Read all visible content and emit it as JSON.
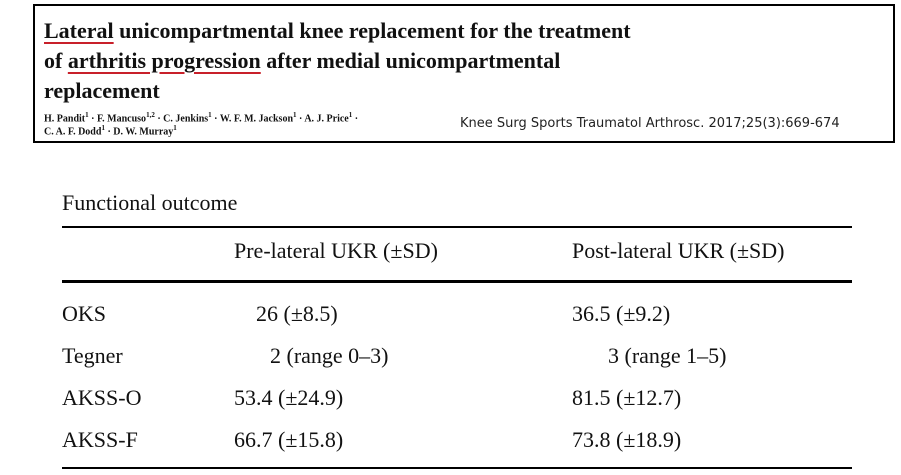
{
  "header": {
    "title_lines": [
      [
        {
          "text": "Lateral",
          "underline": true
        },
        {
          "text": " unicompartmental knee replacement for the treatment",
          "underline": false
        }
      ],
      [
        {
          "text": "of ",
          "underline": false
        },
        {
          "text": "arthritis progression",
          "underline": true
        },
        {
          "text": " after medial unicompartmental",
          "underline": false
        }
      ],
      [
        {
          "text": "replacement",
          "underline": false
        }
      ]
    ],
    "separator": "·",
    "author_lines": [
      [
        {
          "name": "H. Pandit",
          "aff": "1"
        },
        {
          "name": "F. Mancuso",
          "aff": "1,2"
        },
        {
          "name": "C. Jenkins",
          "aff": "1"
        },
        {
          "name": "W. F. M. Jackson",
          "aff": "1"
        },
        {
          "name": "A. J. Price",
          "aff": "1"
        }
      ],
      [
        {
          "name": "C. A. F. Dodd",
          "aff": "1"
        },
        {
          "name": "D. W. Murray",
          "aff": "1"
        }
      ]
    ],
    "citation": "Knee Surg Sports Traumatol Arthrosc. 2017;25(3):669-674"
  },
  "table": {
    "caption": "Functional outcome",
    "columns": [
      "",
      "Pre-lateral UKR (±SD)",
      "Post-lateral UKR (±SD)"
    ],
    "rows": [
      [
        "OKS",
        "26 (±8.5)",
        "36.5 (±9.2)"
      ],
      [
        "Tegner",
        "2 (range 0–3)",
        "3 (range 1–5)"
      ],
      [
        "AKSS-O",
        "53.4 (±24.9)",
        "81.5 (±12.7)"
      ],
      [
        "AKSS-F",
        "66.7 (±15.8)",
        "73.8 (±18.9)"
      ]
    ]
  }
}
